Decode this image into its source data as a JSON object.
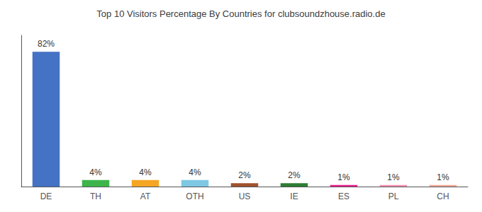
{
  "chart_data": {
    "type": "bar",
    "title": "Top 10 Visitors Percentage By Countries for clubsoundzhouse.radio.de",
    "categories": [
      "DE",
      "TH",
      "AT",
      "OTH",
      "US",
      "IE",
      "ES",
      "PL",
      "CH"
    ],
    "values": [
      82,
      4,
      4,
      4,
      2,
      2,
      1,
      1,
      1
    ],
    "value_labels": [
      "82%",
      "4%",
      "4%",
      "4%",
      "2%",
      "2%",
      "1%",
      "1%",
      "1%"
    ],
    "colors": [
      "#4472c4",
      "#3cb54a",
      "#f5a623",
      "#7ec8e3",
      "#a0522d",
      "#2e7d32",
      "#e91e8c",
      "#f48fb1",
      "#f4a896"
    ],
    "ylim": [
      0,
      92
    ],
    "grid": false,
    "data_labels": true,
    "tick_labels": "x"
  }
}
